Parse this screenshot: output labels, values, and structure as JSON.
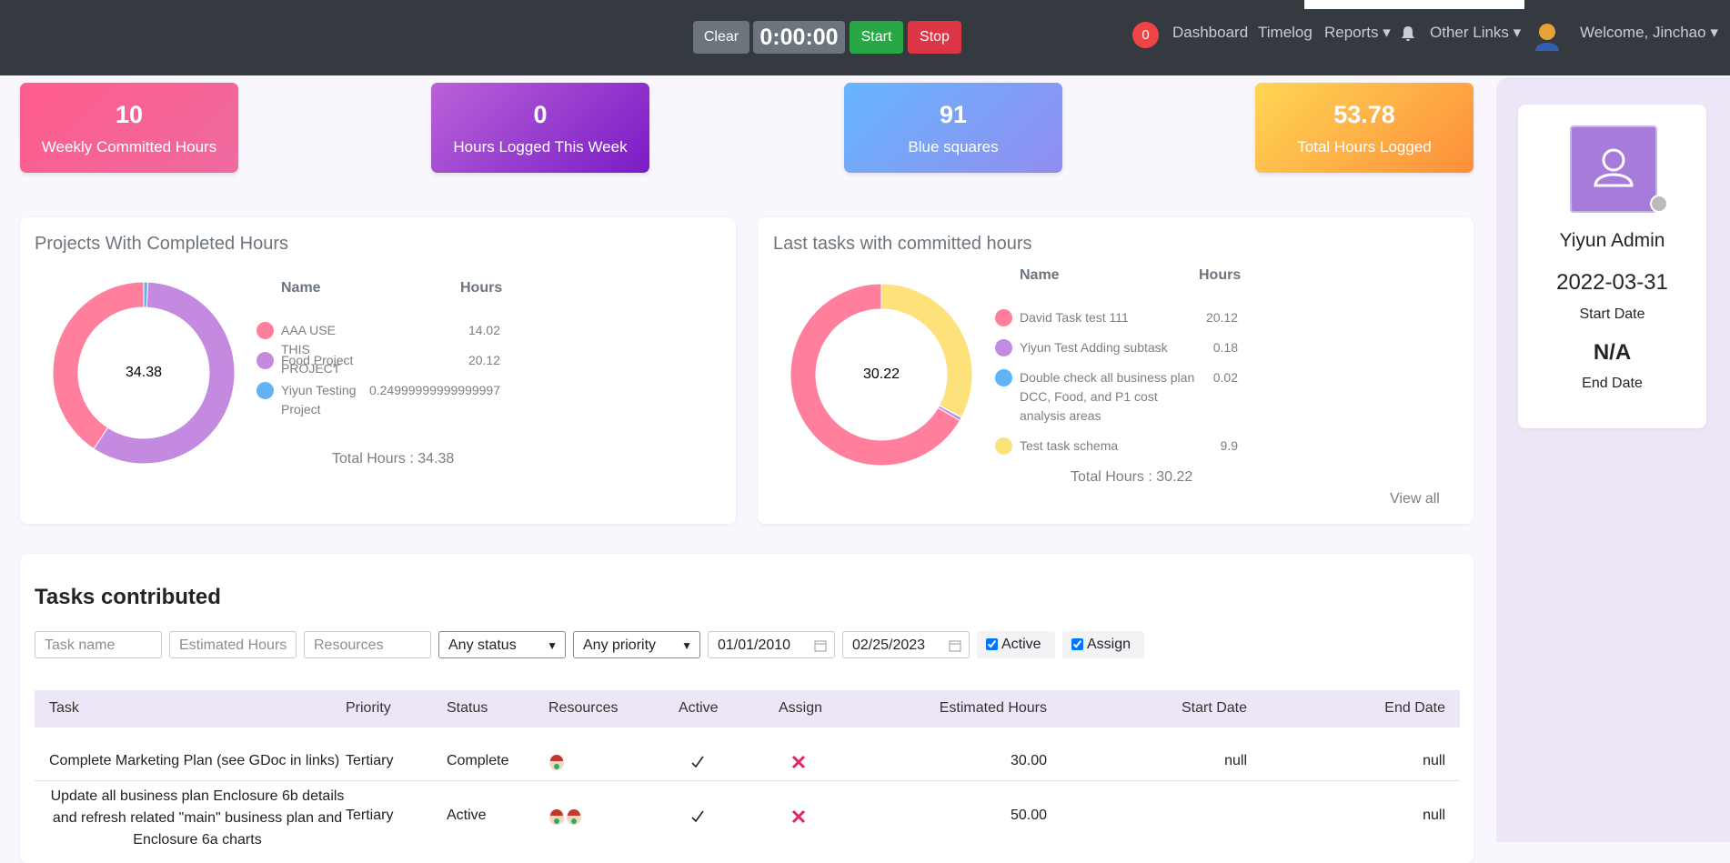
{
  "header": {
    "clear": "Clear",
    "timer": "0:00:00",
    "start": "Start",
    "stop": "Stop",
    "badge": "0",
    "nav": [
      "Dashboard",
      "Timelog",
      "Reports",
      "Other Links"
    ],
    "welcome": "Welcome, Jinchao"
  },
  "stats": [
    {
      "value": 10,
      "label": "Weekly Committed Hours"
    },
    {
      "value": 0,
      "label": "Hours Logged This Week"
    },
    {
      "value": 91,
      "label": "Blue squares"
    },
    {
      "value": 53.78,
      "label": "Total Hours Logged"
    }
  ],
  "projects_chart": {
    "type": "donut",
    "title": "Projects With Completed Hours",
    "name_header": "Name",
    "hours_header": "Hours",
    "categories": [
      "AAA USE THIS PROJECT",
      "Food Project",
      "Yiyun Testing Project"
    ],
    "values": [
      14.02,
      20.12,
      0.24999999999999997
    ],
    "colors": [
      "#ff7f9c",
      "#c38ae0",
      "#62b2f6"
    ],
    "total": 34.38,
    "total_label": "Total Hours :"
  },
  "tasks_chart": {
    "type": "donut",
    "title": "Last tasks with committed hours",
    "name_header": "Name",
    "hours_header": "Hours",
    "categories": [
      "David Task test 111",
      "Yiyun Test Adding subtask",
      "Double check all business plan DCC, Food, and P1 cost analysis areas",
      "Test task schema"
    ],
    "values": [
      20.12,
      0.18,
      0.02,
      9.9
    ],
    "colors": [
      "#ff7f9c",
      "#c38ae0",
      "#62b2f6",
      "#fde17b"
    ],
    "total": 30.22,
    "total_label": "Total Hours :",
    "view_all": "View all"
  },
  "profile": {
    "name": "Yiyun Admin",
    "start_date": "2022-03-31",
    "start_label": "Start Date",
    "end_date": "N/A",
    "end_label": "End Date"
  },
  "tasks": {
    "title": "Tasks contributed",
    "filters": {
      "task_name": "Task name",
      "estimated_hours": "Estimated Hours",
      "resources": "Resources",
      "status": "Any status",
      "priority": "Any priority",
      "from_date": "01/01/2010",
      "to_date": "02/25/2023",
      "active": "Active",
      "assign": "Assign"
    },
    "columns": [
      "Task",
      "Priority",
      "Status",
      "Resources",
      "Active",
      "Assign",
      "Estimated Hours",
      "Start Date",
      "End Date"
    ],
    "rows": [
      {
        "task": "Complete Marketing Plan (see GDoc in links)",
        "priority": "Tertiary",
        "status": "Complete",
        "estimated": "30.00",
        "start": "null",
        "end": "null"
      },
      {
        "task": "Update all business plan Enclosure 6b details and refresh related \"main\" business plan and Enclosure 6a charts",
        "priority": "Tertiary",
        "status": "Active",
        "estimated": "50.00",
        "end": "null"
      }
    ]
  }
}
